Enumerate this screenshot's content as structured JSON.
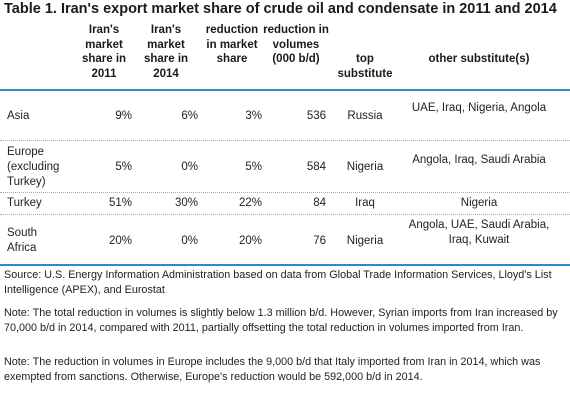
{
  "title": "Table 1. Iran's export market share of crude oil and condensate in 2011 and 2014",
  "headers": {
    "share2011": "Iran's market share in 2011",
    "share2014": "Iran's market share in 2014",
    "reduction_share": "reduction in market share",
    "reduction_volume": "reduction in volumes (000 b/d)",
    "top_substitute": "top substitute",
    "other_substitutes": "other substitute(s)"
  },
  "rows": [
    {
      "region": "Asia",
      "share2011": "9%",
      "share2014": "6%",
      "reduction_share": "3%",
      "reduction_volume": "536",
      "top_substitute": "Russia",
      "other_substitutes": "UAE, Iraq, Nigeria, Angola"
    },
    {
      "region": "Europe (excluding Turkey)",
      "share2011": "5%",
      "share2014": "0%",
      "reduction_share": "5%",
      "reduction_volume": "584",
      "top_substitute": "Nigeria",
      "other_substitutes": "Angola, Iraq, Saudi Arabia"
    },
    {
      "region": "Turkey",
      "share2011": "51%",
      "share2014": "30%",
      "reduction_share": "22%",
      "reduction_volume": "84",
      "top_substitute": "Iraq",
      "other_substitutes": "Nigeria"
    },
    {
      "region": "South Africa",
      "share2011": "20%",
      "share2014": "0%",
      "reduction_share": "20%",
      "reduction_volume": "76",
      "top_substitute": "Nigeria",
      "other_substitutes": "Angola, UAE, Saudi Arabia, Iraq, Kuwait"
    }
  ],
  "source": "Source: U.S. Energy Information Administration based on data from Global Trade Information Services, Lloyd's List Intelligence (APEX), and Eurostat",
  "notes": [
    "Note: The total reduction in volumes is slightly below 1.3 million b/d. However, Syrian imports from Iran increased by 70,000 b/d in 2014, compared with 2011, partially offsetting the total reduction in volumes imported from Iran.",
    "Note: The reduction in volumes in Europe includes the 9,000 b/d that Italy imported from Iran in 2014, which was exempted from sanctions. Otherwise, Europe's reduction would be 592,000 b/d in 2014."
  ],
  "colors": {
    "rule": "#2e8bc9",
    "text": "#222222"
  }
}
